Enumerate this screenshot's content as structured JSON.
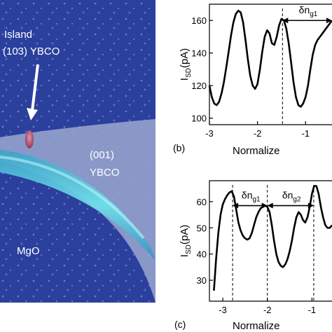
{
  "afm_image": {
    "labels": {
      "island_line1": "Island",
      "island_line2": "(103) YBCO",
      "ybco001_line1": "(001)",
      "ybco001_line2": "YBCO",
      "substrate": "MgO"
    },
    "colors": {
      "surface_dark": "#2b3f9c",
      "surface_mid": "#3f57b8",
      "film_light": "#9aa8cf",
      "channel": "#5fd0e0",
      "island": "#c0607f"
    }
  },
  "chart_data": [
    {
      "type": "line",
      "panel_label": "(b)",
      "xlabel": "Normalize",
      "ylabel": "I_SD(pA)",
      "ylabel_main": "I",
      "ylabel_sub": "SD",
      "ylabel_unit": "(pA)",
      "xticks": [
        -3,
        -2,
        -1
      ],
      "xtick_labels": [
        "-3",
        "-2",
        "-1"
      ],
      "yticks": [
        100,
        120,
        140,
        160
      ],
      "ytick_labels": [
        "100",
        "120",
        "140",
        "160"
      ],
      "xlim": [
        -3.0,
        -0.45
      ],
      "ylim": [
        96,
        170
      ],
      "annotation": {
        "text": "δn",
        "sub": "g1",
        "x_start": -1.48,
        "x_end": -0.45,
        "y": 160
      },
      "vlines": [
        -1.48
      ],
      "x": [
        -3.0,
        -2.95,
        -2.9,
        -2.85,
        -2.8,
        -2.75,
        -2.7,
        -2.65,
        -2.6,
        -2.55,
        -2.5,
        -2.45,
        -2.4,
        -2.35,
        -2.3,
        -2.25,
        -2.2,
        -2.15,
        -2.1,
        -2.05,
        -2.0,
        -1.95,
        -1.9,
        -1.85,
        -1.8,
        -1.75,
        -1.7,
        -1.65,
        -1.6,
        -1.55,
        -1.5,
        -1.45,
        -1.4,
        -1.35,
        -1.3,
        -1.25,
        -1.2,
        -1.15,
        -1.1,
        -1.05,
        -1.0,
        -0.95,
        -0.9,
        -0.85,
        -0.8,
        -0.75,
        -0.7,
        -0.65,
        -0.6,
        -0.55,
        -0.5,
        -0.45
      ],
      "y": [
        120,
        113,
        109,
        108,
        110,
        115,
        122,
        131,
        141,
        151,
        159,
        164,
        166,
        165,
        159,
        148,
        136,
        126,
        120,
        118,
        121,
        130,
        141,
        150,
        154,
        152,
        146,
        145,
        150,
        157,
        161,
        160,
        155,
        146,
        134,
        122,
        113,
        108,
        107,
        109,
        113,
        120,
        130,
        139,
        145,
        148,
        150,
        152,
        154,
        156,
        158,
        160
      ]
    },
    {
      "type": "line",
      "panel_label": "(c)",
      "xlabel": "Normalize",
      "ylabel": "I_SD(pA)",
      "ylabel_main": "I",
      "ylabel_sub": "SD",
      "ylabel_unit": "(pA)",
      "xticks": [
        -3,
        -2,
        -1
      ],
      "xtick_labels": [
        "-3",
        "-2",
        "-1"
      ],
      "yticks": [
        30,
        40,
        50,
        60
      ],
      "ytick_labels": [
        "30",
        "40",
        "50",
        "60"
      ],
      "xlim": [
        -3.3,
        -0.55
      ],
      "ylim": [
        22,
        68
      ],
      "annotations": [
        {
          "text": "δn",
          "sub": "g1",
          "x_start": -2.78,
          "x_end": -2.0,
          "y": 58.5
        },
        {
          "text": "δn",
          "sub": "g2",
          "x_start": -2.0,
          "x_end": -0.96,
          "y": 58.5
        }
      ],
      "vlines": [
        -2.78,
        -2.0,
        -0.96
      ],
      "x": [
        -3.2,
        -3.15,
        -3.1,
        -3.05,
        -3.0,
        -2.95,
        -2.9,
        -2.85,
        -2.8,
        -2.75,
        -2.7,
        -2.65,
        -2.6,
        -2.55,
        -2.5,
        -2.45,
        -2.4,
        -2.35,
        -2.3,
        -2.25,
        -2.2,
        -2.15,
        -2.1,
        -2.05,
        -2.0,
        -1.95,
        -1.9,
        -1.85,
        -1.8,
        -1.75,
        -1.7,
        -1.65,
        -1.6,
        -1.55,
        -1.5,
        -1.45,
        -1.4,
        -1.35,
        -1.3,
        -1.25,
        -1.2,
        -1.15,
        -1.1,
        -1.05,
        -1.0,
        -0.95,
        -0.9,
        -0.85,
        -0.8,
        -0.75,
        -0.7,
        -0.65,
        -0.6,
        -0.55
      ],
      "y": [
        26,
        38,
        48,
        55,
        59,
        61,
        62.5,
        63.5,
        64,
        62,
        57,
        52,
        49,
        47,
        46,
        45.5,
        46,
        48,
        51,
        54,
        56,
        57.5,
        58,
        58.5,
        58,
        56,
        51,
        45,
        40,
        37,
        35.5,
        35,
        36,
        38,
        41,
        45,
        50,
        54,
        56,
        55,
        53,
        52,
        54,
        58,
        63,
        66,
        66,
        63,
        58,
        54,
        51,
        50,
        50,
        51
      ]
    }
  ]
}
